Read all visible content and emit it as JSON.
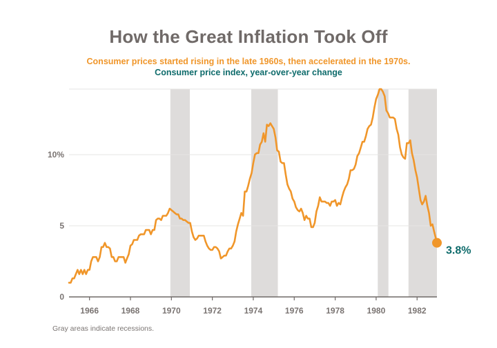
{
  "chart_data": {
    "type": "line",
    "title": "How the Great Inflation Took Off",
    "subtitle": "Consumer prices started rising in the late 1960s, then accelerated in the 1970s.",
    "ylabel": "Consumer price index, year-over-year change",
    "xlabel": "",
    "footnote": "Gray areas indicate recessions.",
    "x_start": 1965.0,
    "x_step_months": 1,
    "xlim": [
      1965.0,
      1982.97
    ],
    "ylim": [
      0,
      14.6
    ],
    "grid": true,
    "x_ticks": [
      1966,
      1968,
      1970,
      1972,
      1974,
      1976,
      1978,
      1980,
      1982
    ],
    "x_tick_labels": [
      "1966",
      "1968",
      "1970",
      "1972",
      "1974",
      "1976",
      "1978",
      "1980",
      "1982"
    ],
    "y_ticks": [
      0,
      5,
      10
    ],
    "y_tick_labels": [
      "0",
      "5",
      "10%"
    ],
    "recessions": [
      {
        "start": 1969.95,
        "end": 1970.9
      },
      {
        "start": 1973.9,
        "end": 1975.2
      },
      {
        "start": 1980.08,
        "end": 1980.6
      },
      {
        "start": 1981.58,
        "end": 1982.97
      }
    ],
    "series": [
      {
        "name": "CPI year-over-year change",
        "color": "#f0962a",
        "values": [
          1.0,
          1.0,
          1.3,
          1.3,
          1.6,
          1.9,
          1.6,
          1.9,
          1.6,
          1.9,
          1.6,
          1.9,
          1.9,
          2.5,
          2.8,
          2.8,
          2.8,
          2.5,
          2.8,
          3.5,
          3.5,
          3.8,
          3.5,
          3.5,
          3.4,
          2.8,
          2.8,
          2.5,
          2.5,
          2.8,
          2.8,
          2.8,
          2.8,
          2.4,
          2.7,
          3.0,
          3.6,
          3.7,
          4.0,
          4.0,
          4.0,
          4.3,
          4.4,
          4.4,
          4.4,
          4.7,
          4.7,
          4.7,
          4.4,
          4.7,
          4.7,
          5.4,
          5.5,
          5.5,
          5.4,
          5.7,
          5.7,
          5.7,
          5.9,
          6.2,
          6.1,
          6.0,
          5.9,
          5.8,
          5.8,
          5.5,
          5.5,
          5.4,
          5.4,
          5.3,
          5.2,
          5.2,
          4.6,
          4.2,
          4.0,
          4.1,
          4.3,
          4.3,
          4.3,
          4.3,
          3.9,
          3.6,
          3.4,
          3.3,
          3.3,
          3.5,
          3.5,
          3.4,
          3.2,
          2.7,
          2.8,
          2.9,
          2.9,
          3.2,
          3.4,
          3.4,
          3.6,
          3.9,
          4.6,
          5.1,
          5.5,
          5.9,
          5.7,
          7.4,
          7.4,
          7.8,
          8.3,
          8.7,
          9.4,
          10.0,
          10.1,
          10.1,
          10.7,
          10.9,
          11.5,
          10.9,
          12.1,
          12.0,
          12.2,
          12.0,
          11.8,
          11.2,
          10.3,
          10.2,
          9.5,
          9.4,
          9.4,
          8.6,
          7.9,
          7.6,
          7.4,
          6.9,
          6.7,
          6.3,
          6.1,
          6.0,
          6.2,
          5.9,
          5.4,
          5.7,
          5.5,
          5.5,
          4.9,
          4.9,
          5.2,
          6.0,
          6.4,
          7.0,
          6.7,
          6.7,
          6.7,
          6.6,
          6.6,
          6.4,
          6.7,
          6.7,
          6.8,
          6.4,
          6.6,
          6.5,
          7.0,
          7.4,
          7.7,
          7.9,
          8.3,
          8.9,
          8.9,
          9.0,
          9.3,
          9.9,
          10.1,
          10.5,
          10.9,
          10.9,
          11.3,
          11.8,
          12.0,
          12.1,
          12.6,
          13.3,
          13.9,
          14.2,
          14.6,
          14.6,
          14.4,
          14.1,
          13.1,
          12.9,
          12.6,
          12.6,
          12.6,
          12.5,
          11.8,
          11.4,
          10.5,
          10.0,
          9.8,
          9.7,
          10.8,
          10.8,
          11.0,
          10.1,
          9.6,
          8.9,
          8.4,
          7.6,
          6.8,
          6.5,
          6.7,
          7.1,
          6.4,
          5.9,
          5.0,
          5.1,
          4.6,
          3.8
        ]
      }
    ],
    "end_label": "3.8%",
    "recession_color": "#dedcdb",
    "axis_color": "#6e6866",
    "grid_color": "#e6e4e3"
  }
}
